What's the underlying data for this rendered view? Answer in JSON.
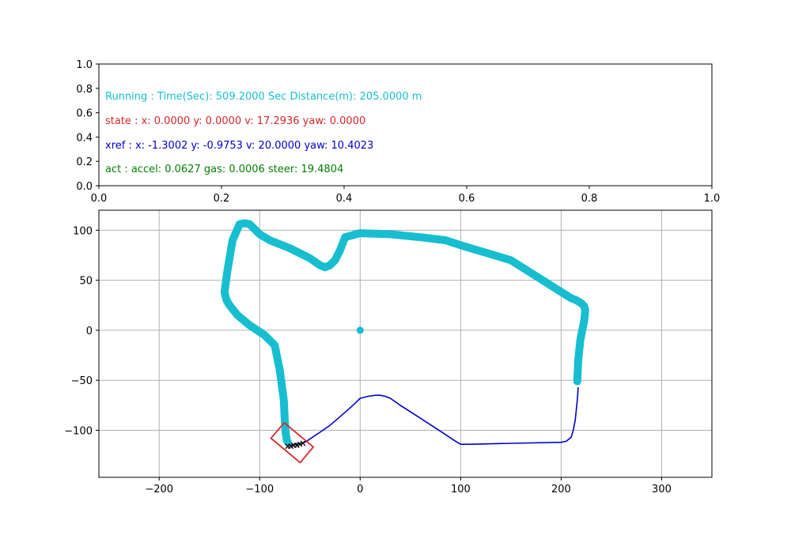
{
  "colors": {
    "track": "#17becf",
    "reference": "#0000cc",
    "vehicle": "#d62728",
    "markers": "#000000",
    "grid": "#b0b0b0"
  },
  "info_panel": {
    "lines": [
      {
        "text": "Running : Time(Sec): 509.2000 Sec Distance(m): 205.0000 m",
        "color": "#17becf"
      },
      {
        "text": "state :  x: 0.0000 y: 0.0000 v: 17.2936 yaw: 0.0000",
        "color": "#d62728"
      },
      {
        "text": "xref :  x: -1.3002 y: -0.9753 v: 20.0000 yaw: 10.4023",
        "color": "#0000cc"
      },
      {
        "text": "act :  accel: 0.0627 gas: 0.0006 steer: 19.4804",
        "color": "#008000"
      }
    ]
  },
  "chart_data": [
    {
      "type": "table",
      "xlim": [
        0.0,
        1.0
      ],
      "ylim": [
        0.0,
        1.0
      ],
      "xticks": [
        "0.0",
        "0.2",
        "0.4",
        "0.6",
        "0.8",
        "1.0"
      ],
      "yticks": [
        "0.0",
        "0.2",
        "0.4",
        "0.6",
        "0.8",
        "1.0"
      ],
      "grid": false
    },
    {
      "type": "scatter",
      "xlim": [
        -260,
        350
      ],
      "ylim": [
        -147,
        120
      ],
      "xticks": [
        -200,
        -100,
        0,
        100,
        200,
        300
      ],
      "yticks": [
        -100,
        -50,
        0,
        50,
        100
      ],
      "xtick_labels": [
        "−200",
        "−100",
        "0",
        "100",
        "200",
        "300"
      ],
      "ytick_labels": [
        "−100",
        "−50",
        "0",
        "50",
        "100"
      ],
      "grid": true,
      "series": [
        {
          "kind": "track",
          "x": [
            216,
            217,
            219,
            221,
            222,
            223,
            224,
            223,
            220,
            215,
            210,
            150,
            100,
            85,
            60,
            30,
            0,
            -15,
            -20,
            -25,
            -30,
            -35,
            -40,
            -50,
            -70,
            -90,
            -100,
            -110,
            -115,
            -120,
            -127,
            -132,
            -135,
            -133,
            -130,
            -122,
            -110,
            -95,
            -85,
            -80,
            -76,
            -75,
            -74,
            -73,
            -72
          ],
          "y": [
            -51,
            -30,
            -10,
            0,
            5,
            10,
            20,
            24,
            27,
            30,
            32,
            70,
            85,
            90,
            93,
            96,
            97,
            93,
            80,
            70,
            65,
            63,
            65,
            72,
            82,
            90,
            96,
            106,
            107,
            106,
            90,
            60,
            38,
            30,
            25,
            15,
            5,
            -5,
            -15,
            -40,
            -70,
            -90,
            -103,
            -110,
            -112
          ]
        },
        {
          "kind": "reference",
          "x": [
            -70,
            -55,
            -40,
            -30,
            -15,
            -5,
            0,
            8,
            15,
            20,
            25,
            30,
            40,
            60,
            80,
            95,
            100,
            110,
            150,
            200,
            205,
            210,
            212,
            214,
            215,
            216,
            217
          ],
          "y": [
            -115,
            -112,
            -102,
            -95,
            -82,
            -73,
            -68,
            -66,
            -65,
            -65,
            -66,
            -68,
            -75,
            -88,
            -101,
            -111,
            -114,
            -114,
            -113,
            -112,
            -111,
            -107,
            -100,
            -90,
            -80,
            -70,
            -57
          ]
        },
        {
          "kind": "origin-marker",
          "x": [
            0
          ],
          "y": [
            0
          ]
        },
        {
          "kind": "predicted-points",
          "x": [
            -72,
            -69,
            -66,
            -63,
            -60,
            -57
          ],
          "y": [
            -116,
            -116,
            -115,
            -115,
            -114,
            -113
          ]
        },
        {
          "kind": "vehicle-box",
          "x": [
            -75.6,
            -88.7,
            -59.7,
            -46.6,
            -75.6
          ],
          "y": [
            -92.4,
            -108.0,
            -132.3,
            -116.7,
            -92.4
          ]
        }
      ]
    }
  ]
}
